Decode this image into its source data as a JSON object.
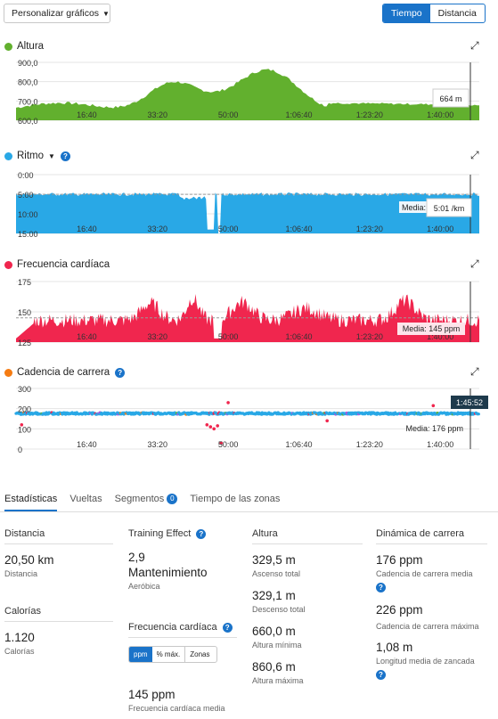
{
  "toolbar": {
    "customize_label": "Personalizar gráficos",
    "mode_time": "Tiempo",
    "mode_distance": "Distancia"
  },
  "x_ticks": [
    "16:40",
    "33:20",
    "50:00",
    "1:06:40",
    "1:23:20",
    "1:40:00"
  ],
  "charts": {
    "altitude": {
      "title": "Altura",
      "color": "#62b02e",
      "y_ticks": [
        "900,0",
        "800,0",
        "700,0",
        "600,0"
      ],
      "tooltip": "664 m"
    },
    "pace": {
      "title": "Ritmo",
      "color": "#29a8e6",
      "y_ticks": [
        "0:00",
        "5:00",
        "10:00",
        "15:00"
      ],
      "avg_label": "Media:",
      "tooltip": "5:01 /km"
    },
    "heart_rate": {
      "title": "Frecuencia cardíaca",
      "color": "#f0264e",
      "y_ticks": [
        "175",
        "150",
        "125"
      ],
      "avg_label": "Media: 145 ppm"
    },
    "cadence": {
      "title": "Cadencia de carrera",
      "color": "#f57c12",
      "y_ticks": [
        "300",
        "200",
        "100",
        "0"
      ],
      "avg_label": "Media: 176 ppm",
      "cursor_time": "1:45:52"
    }
  },
  "chart_data": [
    {
      "type": "area",
      "title": "Altura",
      "x": [
        "16:40",
        "33:20",
        "50:00",
        "1:06:40",
        "1:23:20",
        "1:40:00"
      ],
      "y_range": [
        600,
        900
      ],
      "note": "cursor value 664 m"
    },
    {
      "type": "area",
      "title": "Ritmo",
      "y_range": [
        "0:00",
        "15:00"
      ],
      "average": "5:01 /km"
    },
    {
      "type": "area",
      "title": "Frecuencia cardíaca",
      "y_range": [
        125,
        175
      ],
      "average": 145
    },
    {
      "type": "scatter",
      "title": "Cadencia de carrera",
      "y_range": [
        0,
        300
      ],
      "average": 176
    }
  ],
  "tabs": [
    "Estadísticas",
    "Vueltas",
    "Segmentos",
    "Tiempo de las zonas"
  ],
  "segments_count": "0",
  "stats": {
    "distance": {
      "header": "Distancia",
      "value": "20,50 km",
      "label": "Distancia"
    },
    "calories": {
      "header": "Calorías",
      "value": "1.120",
      "label": "Calorías"
    },
    "training": {
      "header": "Training Effect",
      "value": "2,9",
      "value2": "Mantenimiento",
      "label": "Aeróbica"
    },
    "hr": {
      "header": "Frecuencia cardíaca",
      "buttons": [
        "ppm",
        "% máx.",
        "Zonas"
      ],
      "value": "145 ppm",
      "label": "Frecuencia cardíaca media"
    },
    "altitude": {
      "header": "Altura",
      "items": [
        {
          "value": "329,5 m",
          "label": "Ascenso total"
        },
        {
          "value": "329,1 m",
          "label": "Descenso total"
        },
        {
          "value": "660,0 m",
          "label": "Altura mínima"
        },
        {
          "value": "860,6 m",
          "label": "Altura máxima"
        }
      ]
    },
    "dynamics": {
      "header": "Dinámica de carrera",
      "items": [
        {
          "value": "176 ppm",
          "label": "Cadencia de carrera media"
        },
        {
          "value": "226 ppm",
          "label": "Cadencia de carrera máxima"
        },
        {
          "value": "1,08 m",
          "label": "Longitud media de zancada"
        }
      ]
    }
  }
}
